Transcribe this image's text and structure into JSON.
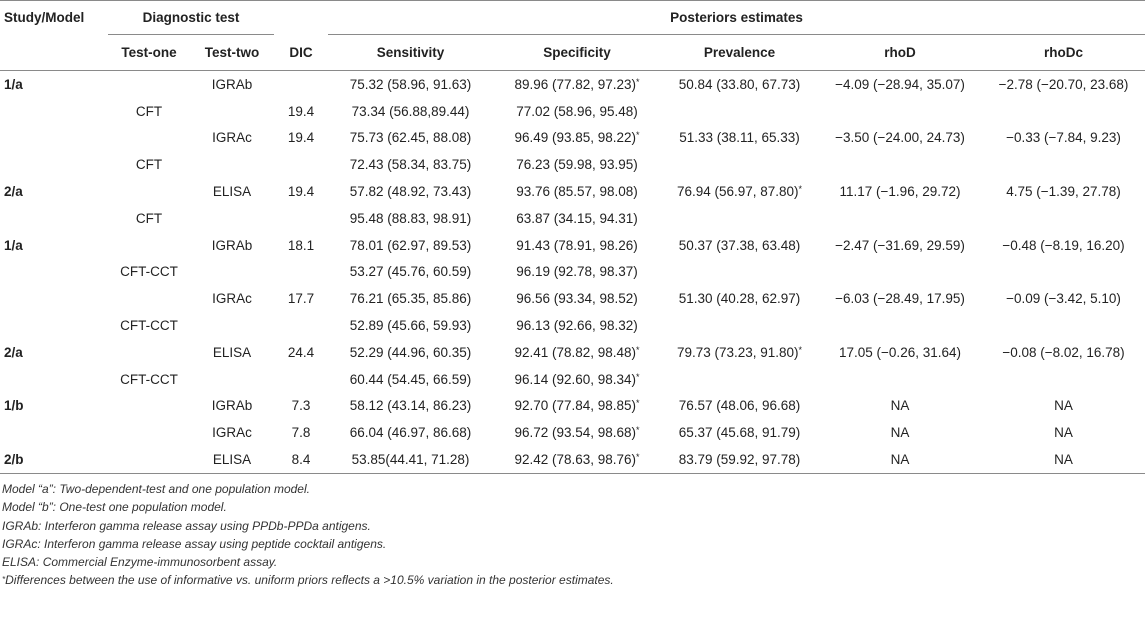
{
  "header": {
    "study_model": "Study/Model",
    "diagnostic_test": "Diagnostic test",
    "posteriors": "Posteriors estimates",
    "test_one": "Test-one",
    "test_two": "Test-two",
    "dic": "DIC",
    "sensitivity": "Sensitivity",
    "specificity": "Specificity",
    "prevalence": "Prevalence",
    "rhoD": "rhoD",
    "rhoDc": "rhoDc"
  },
  "rows": [
    {
      "study": "1/a",
      "t1": "",
      "t2": "IGRAb",
      "dic": "",
      "se": "75.32 (58.96, 91.63)",
      "sp": "89.96 (77.82, 97.23)",
      "sp_ast": "*",
      "pr": "50.84 (33.80, 67.73)",
      "pr_ast": "",
      "rhoD": "−4.09 (−28.94, 35.07)",
      "rhoDc": "−2.78 (−20.70, 23.68)"
    },
    {
      "study": "",
      "t1": "CFT",
      "t2": "",
      "dic": "19.4",
      "se": "73.34 (56.88,89.44)",
      "sp": "77.02 (58.96, 95.48)",
      "sp_ast": "",
      "pr": "",
      "pr_ast": "",
      "rhoD": "",
      "rhoDc": ""
    },
    {
      "study": "",
      "t1": "",
      "t2": "IGRAc",
      "dic": "19.4",
      "se": "75.73 (62.45, 88.08)",
      "sp": "96.49 (93.85, 98.22)",
      "sp_ast": "*",
      "pr": "51.33 (38.11, 65.33)",
      "pr_ast": "",
      "rhoD": "−3.50 (−24.00, 24.73)",
      "rhoDc": "−0.33 (−7.84, 9.23)"
    },
    {
      "study": "",
      "t1": "CFT",
      "t2": "",
      "dic": "",
      "se": "72.43 (58.34, 83.75)",
      "sp": "76.23 (59.98, 93.95)",
      "sp_ast": "",
      "pr": "",
      "pr_ast": "",
      "rhoD": "",
      "rhoDc": ""
    },
    {
      "study": "2/a",
      "t1": "",
      "t2": "ELISA",
      "dic": "19.4",
      "se": "57.82 (48.92, 73.43)",
      "sp": "93.76 (85.57, 98.08)",
      "sp_ast": "",
      "pr": "76.94 (56.97, 87.80)",
      "pr_ast": "*",
      "rhoD": "11.17 (−1.96, 29.72)",
      "rhoDc": "4.75 (−1.39, 27.78)"
    },
    {
      "study": "",
      "t1": "CFT",
      "t2": "",
      "dic": "",
      "se": "95.48 (88.83, 98.91)",
      "sp": "63.87 (34.15, 94.31)",
      "sp_ast": "",
      "pr": "",
      "pr_ast": "",
      "rhoD": "",
      "rhoDc": ""
    },
    {
      "study": "1/a",
      "t1": "",
      "t2": "IGRAb",
      "dic": "18.1",
      "se": "78.01 (62.97, 89.53)",
      "sp": "91.43 (78.91, 98.26)",
      "sp_ast": "",
      "pr": "50.37 (37.38, 63.48)",
      "pr_ast": "",
      "rhoD": "−2.47 (−31.69, 29.59)",
      "rhoDc": "−0.48 (−8.19, 16.20)"
    },
    {
      "study": "",
      "t1": "CFT-CCT",
      "t2": "",
      "dic": "",
      "se": "53.27 (45.76, 60.59)",
      "sp": "96.19 (92.78, 98.37)",
      "sp_ast": "",
      "pr": "",
      "pr_ast": "",
      "rhoD": "",
      "rhoDc": ""
    },
    {
      "study": "",
      "t1": "",
      "t2": "IGRAc",
      "dic": "17.7",
      "se": "76.21 (65.35, 85.86)",
      "sp": "96.56 (93.34, 98.52)",
      "sp_ast": "",
      "pr": "51.30 (40.28, 62.97)",
      "pr_ast": "",
      "rhoD": "−6.03 (−28.49, 17.95)",
      "rhoDc": "−0.09 (−3.42, 5.10)"
    },
    {
      "study": "",
      "t1": "CFT-CCT",
      "t2": "",
      "dic": "",
      "se": "52.89 (45.66, 59.93)",
      "sp": "96.13 (92.66, 98.32)",
      "sp_ast": "",
      "pr": "",
      "pr_ast": "",
      "rhoD": "",
      "rhoDc": ""
    },
    {
      "study": "2/a",
      "t1": "",
      "t2": "ELISA",
      "dic": "24.4",
      "se": "52.29 (44.96, 60.35)",
      "sp": "92.41 (78.82, 98.48)",
      "sp_ast": "*",
      "pr": "79.73 (73.23, 91.80)",
      "pr_ast": "*",
      "rhoD": "17.05 (−0.26, 31.64)",
      "rhoDc": "−0.08 (−8.02, 16.78)"
    },
    {
      "study": "",
      "t1": "CFT-CCT",
      "t2": "",
      "dic": "",
      "se": "60.44 (54.45, 66.59)",
      "sp": "96.14 (92.60, 98.34)",
      "sp_ast": "*",
      "pr": "",
      "pr_ast": "",
      "rhoD": "",
      "rhoDc": ""
    },
    {
      "study": "1/b",
      "t1": "",
      "t2": "IGRAb",
      "dic": "7.3",
      "se": "58.12 (43.14, 86.23)",
      "sp": "92.70 (77.84, 98.85)",
      "sp_ast": "*",
      "pr": "76.57 (48.06, 96.68)",
      "pr_ast": "",
      "rhoD": "NA",
      "rhoDc": "NA"
    },
    {
      "study": "",
      "t1": "",
      "t2": "IGRAc",
      "dic": "7.8",
      "se": "66.04 (46.97, 86.68)",
      "sp": "96.72 (93.54, 98.68)",
      "sp_ast": "*",
      "pr": "65.37 (45.68, 91.79)",
      "pr_ast": "",
      "rhoD": "NA",
      "rhoDc": "NA"
    },
    {
      "study": "2/b",
      "t1": "",
      "t2": "ELISA",
      "dic": "8.4",
      "se": "53.85(44.41, 71.28)",
      "sp": "92.42 (78.63, 98.76)",
      "sp_ast": "*",
      "pr": "83.79 (59.92, 97.78)",
      "pr_ast": "",
      "rhoD": "NA",
      "rhoDc": "NA"
    }
  ],
  "notes": {
    "n1": "Model “a”: Two-dependent-test and one population model.",
    "n2": "Model “b”: One-test one population model.",
    "n3": "IGRAb: Interferon gamma release assay using PPDb-PPDa antigens.",
    "n4": "IGRAc: Interferon gamma release assay using peptide cocktail antigens.",
    "n5": "ELISA: Commercial Enzyme-immunosorbent assay.",
    "n6_mark": "*",
    "n6": "Differences between the use of informative vs. uniform priors reflects a >10.5% variation in the posterior estimates."
  }
}
